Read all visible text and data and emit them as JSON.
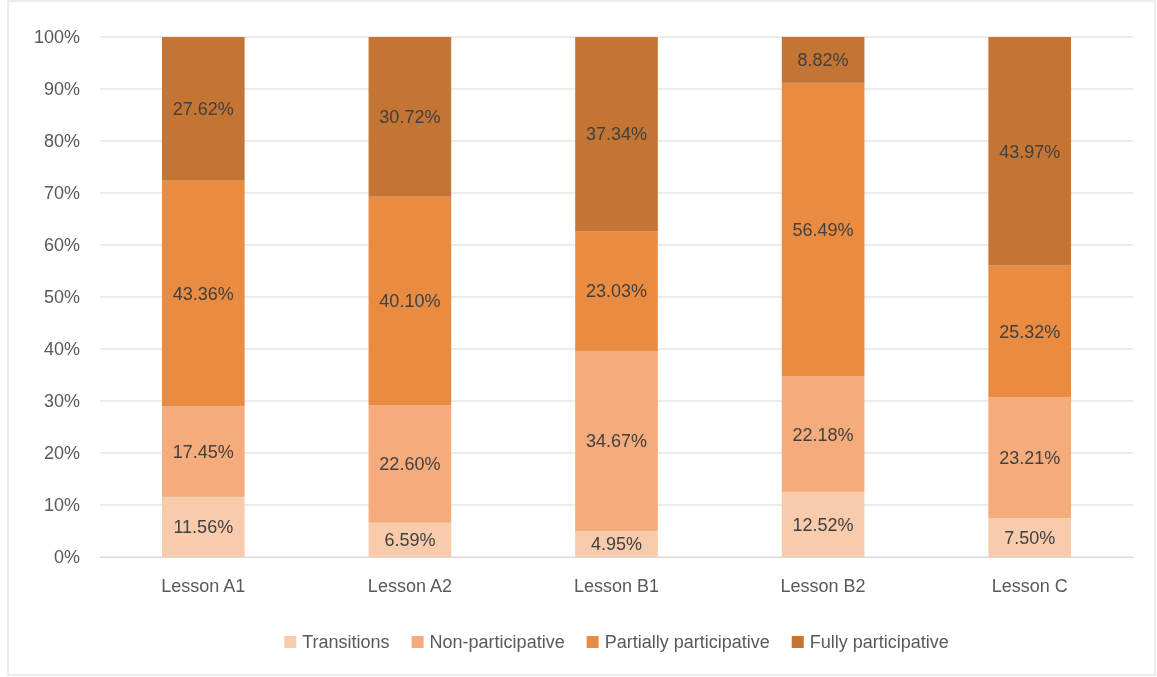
{
  "chart_data": {
    "type": "bar",
    "stacked": true,
    "categories": [
      "Lesson A1",
      "Lesson A2",
      "Lesson B1",
      "Lesson B2",
      "Lesson C"
    ],
    "series": [
      {
        "name": "Transitions",
        "color": "#f8cbad",
        "values": [
          11.56,
          6.59,
          4.95,
          12.52,
          7.5
        ],
        "value_labels": [
          "11.56%",
          "6.59%",
          "4.95%",
          "12.52%",
          "7.50%"
        ]
      },
      {
        "name": "Non-participative",
        "color": "#f5ab7b",
        "values": [
          17.45,
          22.6,
          34.67,
          22.18,
          23.21
        ],
        "value_labels": [
          "17.45%",
          "22.60%",
          "34.67%",
          "22.18%",
          "23.21%"
        ]
      },
      {
        "name": "Partially participative",
        "color": "#e98c42",
        "values": [
          43.36,
          40.1,
          23.03,
          56.49,
          25.32
        ],
        "value_labels": [
          "43.36%",
          "40.10%",
          "23.03%",
          "56.49%",
          "25.32%"
        ]
      },
      {
        "name": "Fully participative",
        "color": "#c47534",
        "values": [
          27.62,
          30.72,
          37.34,
          8.82,
          43.97
        ],
        "value_labels": [
          "27.62%",
          "30.72%",
          "37.34%",
          "8.82%",
          "43.97%"
        ]
      }
    ],
    "ylim": [
      0,
      100
    ],
    "yticks": [
      {
        "value": 0,
        "label": "0%"
      },
      {
        "value": 10,
        "label": "10%"
      },
      {
        "value": 20,
        "label": "20%"
      },
      {
        "value": 30,
        "label": "30%"
      },
      {
        "value": 40,
        "label": "40%"
      },
      {
        "value": 50,
        "label": "50%"
      },
      {
        "value": 60,
        "label": "60%"
      },
      {
        "value": 70,
        "label": "70%"
      },
      {
        "value": 80,
        "label": "80%"
      },
      {
        "value": 90,
        "label": "90%"
      },
      {
        "value": 100,
        "label": "100%"
      }
    ],
    "grid": "y",
    "legend": "bottom"
  }
}
